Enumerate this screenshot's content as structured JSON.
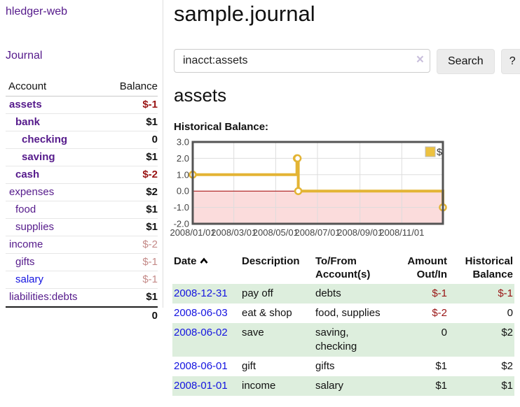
{
  "app": {
    "brand": "hledger-web",
    "nav_journal": "Journal"
  },
  "sidebar": {
    "header": {
      "account": "Account",
      "balance": "Balance"
    },
    "accounts": [
      {
        "name": "assets",
        "depth": 1,
        "bold": true,
        "link": "visited",
        "balance": "$-1",
        "balance_style": "neg-strong"
      },
      {
        "name": "bank",
        "depth": 2,
        "bold": true,
        "link": "visited",
        "balance": "$1",
        "balance_style": "pos"
      },
      {
        "name": "checking",
        "depth": 3,
        "bold": true,
        "link": "visited",
        "balance": "0",
        "balance_style": "pos"
      },
      {
        "name": "saving",
        "depth": 3,
        "bold": true,
        "link": "visited",
        "balance": "$1",
        "balance_style": "pos"
      },
      {
        "name": "cash",
        "depth": 2,
        "bold": true,
        "link": "visited",
        "balance": "$-2",
        "balance_style": "neg-strong"
      },
      {
        "name": "expenses",
        "depth": 1,
        "bold": false,
        "link": "visited",
        "balance": "$2",
        "balance_style": "pos"
      },
      {
        "name": "food",
        "depth": 2,
        "bold": false,
        "link": "visited",
        "balance": "$1",
        "balance_style": "pos"
      },
      {
        "name": "supplies",
        "depth": 2,
        "bold": false,
        "link": "visited",
        "balance": "$1",
        "balance_style": "pos"
      },
      {
        "name": "income",
        "depth": 1,
        "bold": false,
        "link": "visited",
        "balance": "$-2",
        "balance_style": "neg-muted"
      },
      {
        "name": "gifts",
        "depth": 2,
        "bold": false,
        "link": "visited",
        "balance": "$-1",
        "balance_style": "neg-muted"
      },
      {
        "name": "salary",
        "depth": 2,
        "bold": false,
        "link": "unvisited",
        "balance": "$-1",
        "balance_style": "neg-muted"
      },
      {
        "name": "liabilities:debts",
        "depth": 1,
        "bold": false,
        "link": "visited",
        "balance": "$1",
        "balance_style": "pos"
      }
    ],
    "total": "0"
  },
  "header": {
    "title": "sample.journal"
  },
  "search": {
    "value": "inacct:assets",
    "clear_glyph": "×",
    "button_label": "Search",
    "help_label": "?"
  },
  "account_page": {
    "heading": "assets",
    "chart_label": "Historical Balance:"
  },
  "chart_data": {
    "type": "line",
    "step": true,
    "title": "Historical Balance:",
    "series": [
      {
        "name": "$",
        "color": "#e3b434",
        "points": [
          [
            "2008/01/01",
            1
          ],
          [
            "2008/06/01",
            2
          ],
          [
            "2008/06/02",
            2
          ],
          [
            "2008/06/03",
            0
          ],
          [
            "2008/12/31",
            -1
          ]
        ]
      }
    ],
    "xlim": [
      "2008/01/01",
      "2008/12/31"
    ],
    "ylim": [
      -2,
      3
    ],
    "x_ticks": [
      "2008/01/01",
      "2008/03/01",
      "2008/05/01",
      "2008/07/01",
      "2008/09/01",
      "2008/11/01"
    ],
    "y_ticks": [
      3.0,
      2.0,
      1.0,
      0.0,
      -1.0,
      -2.0
    ],
    "grid": true,
    "gridline_color": "#dddddd",
    "border_color": "#545454",
    "negative_region_fill": "#fbdcdc",
    "zero_line_color": "#a00000",
    "legend": {
      "label": "$",
      "swatch_color": "#edc240",
      "position": "top-right"
    },
    "marker": {
      "shape": "circle",
      "fill": "#ffffff"
    }
  },
  "register": {
    "columns": [
      {
        "line1": "Date",
        "line2": "",
        "align": "left",
        "sortable": true
      },
      {
        "line1": "Description",
        "line2": "",
        "align": "left"
      },
      {
        "line1": "To/From",
        "line2": "Account(s)",
        "align": "left"
      },
      {
        "line1": "Amount",
        "line2": "Out/In",
        "align": "right"
      },
      {
        "line1": "Historical",
        "line2": "Balance",
        "align": "right"
      }
    ],
    "rows": [
      {
        "date": "2008-12-31",
        "description": "pay off",
        "accounts": "debts",
        "amount": "$-1",
        "amount_neg": true,
        "balance": "$-1",
        "balance_neg": true
      },
      {
        "date": "2008-06-03",
        "description": "eat & shop",
        "accounts": "food, supplies",
        "amount": "$-2",
        "amount_neg": true,
        "balance": "0",
        "balance_neg": false
      },
      {
        "date": "2008-06-02",
        "description": "save",
        "accounts": "saving, checking",
        "amount": "0",
        "amount_neg": false,
        "balance": "$2",
        "balance_neg": false
      },
      {
        "date": "2008-06-01",
        "description": "gift",
        "accounts": "gifts",
        "amount": "$1",
        "amount_neg": false,
        "balance": "$2",
        "balance_neg": false
      },
      {
        "date": "2008-01-01",
        "description": "income",
        "accounts": "salary",
        "amount": "$1",
        "amount_neg": false,
        "balance": "$1",
        "balance_neg": false
      }
    ]
  }
}
